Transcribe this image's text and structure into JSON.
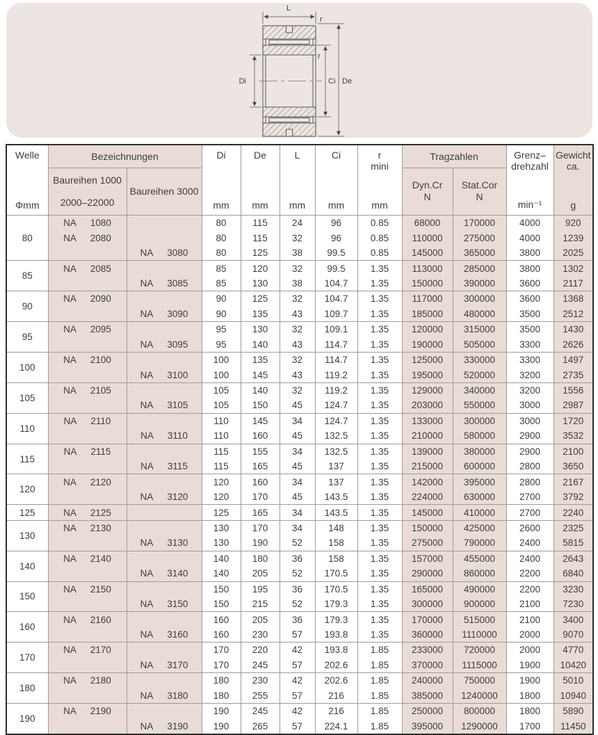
{
  "colors": {
    "panel_bg": "#ece5e2",
    "cell_pink": "#e9dcd7",
    "outer_border": "#2d2d2d",
    "grid_line": "#a19a96",
    "text": "#3d3d3d"
  },
  "diagram": {
    "labels": {
      "length": "L",
      "radius_top": "r",
      "radius_mid": "r",
      "bore": "Di",
      "inner": "Ci",
      "outer": "De"
    }
  },
  "table": {
    "header": {
      "welle_line1": "Welle",
      "welle_line2": "Φmm",
      "bezeichnungen": "Bezeichnungen",
      "baureihen1000_line1": "Baureihen 1000",
      "baureihen1000_line2": "2000–22000",
      "baureihen3000": "Baureihen 3000",
      "di": "Di",
      "de": "De",
      "l": "L",
      "ci": "Ci",
      "r_line1": "r",
      "r_line2": "mini",
      "mm": "mm",
      "tragzahlen": "Tragzahlen",
      "dyn_line1": "Dyn.Cr",
      "dyn_line2": "N",
      "stat_line1": "Stat.Cor",
      "stat_line2": "N",
      "grenz_line1": "Grenz–",
      "grenz_line2": "drehzahl",
      "grenz_unit": "min⁻¹",
      "gewicht_line1": "Gewicht",
      "gewicht_line2": "ca.",
      "gewicht_unit": "g"
    },
    "groups": [
      {
        "welle": "80",
        "rows": [
          {
            "b1000": "NA 1080",
            "b3000": "",
            "di": "80",
            "de": "115",
            "l": "24",
            "ci": "96",
            "r": "0.85",
            "dyn": "68000",
            "stat": "170000",
            "grenz": "4000",
            "g": "920"
          },
          {
            "b1000": "NA 2080",
            "b3000": "",
            "di": "80",
            "de": "115",
            "l": "32",
            "ci": "96",
            "r": "0.85",
            "dyn": "110000",
            "stat": "275000",
            "grenz": "4000",
            "g": "1239"
          },
          {
            "b1000": "",
            "b3000": "NA 3080",
            "di": "80",
            "de": "125",
            "l": "38",
            "ci": "99.5",
            "r": "0.85",
            "dyn": "145000",
            "stat": "365000",
            "grenz": "3800",
            "g": "2025"
          }
        ]
      },
      {
        "welle": "85",
        "rows": [
          {
            "b1000": "NA 2085",
            "b3000": "",
            "di": "85",
            "de": "120",
            "l": "32",
            "ci": "99.5",
            "r": "1.35",
            "dyn": "113000",
            "stat": "285000",
            "grenz": "3800",
            "g": "1302"
          },
          {
            "b1000": "",
            "b3000": "NA 3085",
            "di": "85",
            "de": "130",
            "l": "38",
            "ci": "104.7",
            "r": "1.35",
            "dyn": "150000",
            "stat": "390000",
            "grenz": "3600",
            "g": "2117"
          }
        ]
      },
      {
        "welle": "90",
        "rows": [
          {
            "b1000": "NA 2090",
            "b3000": "",
            "di": "90",
            "de": "125",
            "l": "32",
            "ci": "104.7",
            "r": "1.35",
            "dyn": "117000",
            "stat": "300000",
            "grenz": "3600",
            "g": "1368"
          },
          {
            "b1000": "",
            "b3000": "NA 3090",
            "di": "90",
            "de": "135",
            "l": "43",
            "ci": "109.7",
            "r": "1.35",
            "dyn": "185000",
            "stat": "480000",
            "grenz": "3500",
            "g": "2512"
          }
        ]
      },
      {
        "welle": "95",
        "rows": [
          {
            "b1000": "NA 2095",
            "b3000": "",
            "di": "95",
            "de": "130",
            "l": "32",
            "ci": "109.1",
            "r": "1.35",
            "dyn": "120000",
            "stat": "315000",
            "grenz": "3500",
            "g": "1430"
          },
          {
            "b1000": "",
            "b3000": "NA 3095",
            "di": "95",
            "de": "140",
            "l": "43",
            "ci": "114.7",
            "r": "1.35",
            "dyn": "190000",
            "stat": "505000",
            "grenz": "3300",
            "g": "2626"
          }
        ]
      },
      {
        "welle": "100",
        "rows": [
          {
            "b1000": "NA 2100",
            "b3000": "",
            "di": "100",
            "de": "135",
            "l": "32",
            "ci": "114.7",
            "r": "1.35",
            "dyn": "125000",
            "stat": "330000",
            "grenz": "3300",
            "g": "1497"
          },
          {
            "b1000": "",
            "b3000": "NA 3100",
            "di": "100",
            "de": "145",
            "l": "43",
            "ci": "119.2",
            "r": "1.35",
            "dyn": "195000",
            "stat": "520000",
            "grenz": "3200",
            "g": "2735"
          }
        ]
      },
      {
        "welle": "105",
        "rows": [
          {
            "b1000": "NA 2105",
            "b3000": "",
            "di": "105",
            "de": "140",
            "l": "32",
            "ci": "119.2",
            "r": "1.35",
            "dyn": "129000",
            "stat": "340000",
            "grenz": "3200",
            "g": "1556"
          },
          {
            "b1000": "",
            "b3000": "NA 3105",
            "di": "105",
            "de": "150",
            "l": "45",
            "ci": "124.7",
            "r": "1.35",
            "dyn": "203000",
            "stat": "550000",
            "grenz": "3000",
            "g": "2987"
          }
        ]
      },
      {
        "welle": "110",
        "rows": [
          {
            "b1000": "NA 2110",
            "b3000": "",
            "di": "110",
            "de": "145",
            "l": "34",
            "ci": "124.7",
            "r": "1.35",
            "dyn": "133000",
            "stat": "300000",
            "grenz": "3000",
            "g": "1720"
          },
          {
            "b1000": "",
            "b3000": "NA 3110",
            "di": "110",
            "de": "160",
            "l": "45",
            "ci": "132.5",
            "r": "1.35",
            "dyn": "210000",
            "stat": "580000",
            "grenz": "2900",
            "g": "3532"
          }
        ]
      },
      {
        "welle": "115",
        "rows": [
          {
            "b1000": "NA 2115",
            "b3000": "",
            "di": "115",
            "de": "155",
            "l": "34",
            "ci": "132.5",
            "r": "1.35",
            "dyn": "139000",
            "stat": "380000",
            "grenz": "2900",
            "g": "2100"
          },
          {
            "b1000": "",
            "b3000": "NA 3115",
            "di": "115",
            "de": "165",
            "l": "45",
            "ci": "137",
            "r": "1.35",
            "dyn": "215000",
            "stat": "600000",
            "grenz": "2800",
            "g": "3650"
          }
        ]
      },
      {
        "welle": "120",
        "rows": [
          {
            "b1000": "NA 2120",
            "b3000": "",
            "di": "120",
            "de": "160",
            "l": "34",
            "ci": "137",
            "r": "1.35",
            "dyn": "142000",
            "stat": "395000",
            "grenz": "2800",
            "g": "2167"
          },
          {
            "b1000": "",
            "b3000": "NA 3120",
            "di": "120",
            "de": "170",
            "l": "45",
            "ci": "143.5",
            "r": "1.35",
            "dyn": "224000",
            "stat": "630000",
            "grenz": "2700",
            "g": "3792"
          }
        ]
      },
      {
        "welle": "125",
        "rows": [
          {
            "b1000": "NA 2125",
            "b3000": "",
            "di": "125",
            "de": "165",
            "l": "34",
            "ci": "143.5",
            "r": "1.35",
            "dyn": "145000",
            "stat": "410000",
            "grenz": "2700",
            "g": "2240"
          }
        ]
      },
      {
        "welle": "130",
        "rows": [
          {
            "b1000": "NA 2130",
            "b3000": "",
            "di": "130",
            "de": "170",
            "l": "34",
            "ci": "148",
            "r": "1.35",
            "dyn": "150000",
            "stat": "425000",
            "grenz": "2600",
            "g": "2325"
          },
          {
            "b1000": "",
            "b3000": "NA 3130",
            "di": "130",
            "de": "190",
            "l": "52",
            "ci": "158",
            "r": "1.35",
            "dyn": "275000",
            "stat": "790000",
            "grenz": "2400",
            "g": "5815"
          }
        ]
      },
      {
        "welle": "140",
        "rows": [
          {
            "b1000": "NA 2140",
            "b3000": "",
            "di": "140",
            "de": "180",
            "l": "36",
            "ci": "158",
            "r": "1.35",
            "dyn": "157000",
            "stat": "455000",
            "grenz": "2400",
            "g": "2643"
          },
          {
            "b1000": "",
            "b3000": "NA 3140",
            "di": "140",
            "de": "205",
            "l": "52",
            "ci": "170.5",
            "r": "1.35",
            "dyn": "290000",
            "stat": "860000",
            "grenz": "2200",
            "g": "6840"
          }
        ]
      },
      {
        "welle": "150",
        "rows": [
          {
            "b1000": "NA 2150",
            "b3000": "",
            "di": "150",
            "de": "195",
            "l": "36",
            "ci": "170.5",
            "r": "1.35",
            "dyn": "165000",
            "stat": "490000",
            "grenz": "2200",
            "g": "3230"
          },
          {
            "b1000": "",
            "b3000": "NA 3150",
            "di": "150",
            "de": "215",
            "l": "52",
            "ci": "179.3",
            "r": "1.35",
            "dyn": "300000",
            "stat": "900000",
            "grenz": "2100",
            "g": "7230"
          }
        ]
      },
      {
        "welle": "160",
        "rows": [
          {
            "b1000": "NA 2160",
            "b3000": "",
            "di": "160",
            "de": "205",
            "l": "36",
            "ci": "179.3",
            "r": "1.35",
            "dyn": "170000",
            "stat": "515000",
            "grenz": "2100",
            "g": "3400"
          },
          {
            "b1000": "",
            "b3000": "NA 3160",
            "di": "160",
            "de": "230",
            "l": "57",
            "ci": "193.8",
            "r": "1.35",
            "dyn": "360000",
            "stat": "1110000",
            "grenz": "2000",
            "g": "9070"
          }
        ]
      },
      {
        "welle": "170",
        "rows": [
          {
            "b1000": "NA 2170",
            "b3000": "",
            "di": "170",
            "de": "220",
            "l": "42",
            "ci": "193.8",
            "r": "1.85",
            "dyn": "233000",
            "stat": "720000",
            "grenz": "2000",
            "g": "4770"
          },
          {
            "b1000": "",
            "b3000": "NA 3170",
            "di": "170",
            "de": "245",
            "l": "57",
            "ci": "202.6",
            "r": "1.85",
            "dyn": "370000",
            "stat": "1115000",
            "grenz": "1900",
            "g": "10420"
          }
        ]
      },
      {
        "welle": "180",
        "rows": [
          {
            "b1000": "NA 2180",
            "b3000": "",
            "di": "180",
            "de": "230",
            "l": "42",
            "ci": "202.6",
            "r": "1.85",
            "dyn": "240000",
            "stat": "750000",
            "grenz": "1900",
            "g": "5010"
          },
          {
            "b1000": "",
            "b3000": "NA 3180",
            "di": "180",
            "de": "255",
            "l": "57",
            "ci": "216",
            "r": "1.85",
            "dyn": "385000",
            "stat": "1240000",
            "grenz": "1800",
            "g": "10940"
          }
        ]
      },
      {
        "welle": "190",
        "rows": [
          {
            "b1000": "NA 2190",
            "b3000": "",
            "di": "190",
            "de": "245",
            "l": "42",
            "ci": "216",
            "r": "1.85",
            "dyn": "250000",
            "stat": "800000",
            "grenz": "1800",
            "g": "5890"
          },
          {
            "b1000": "",
            "b3000": "NA 3190",
            "di": "190",
            "de": "265",
            "l": "57",
            "ci": "224.1",
            "r": "1.85",
            "dyn": "395000",
            "stat": "1290000",
            "grenz": "1700",
            "g": "11450"
          }
        ]
      }
    ]
  }
}
